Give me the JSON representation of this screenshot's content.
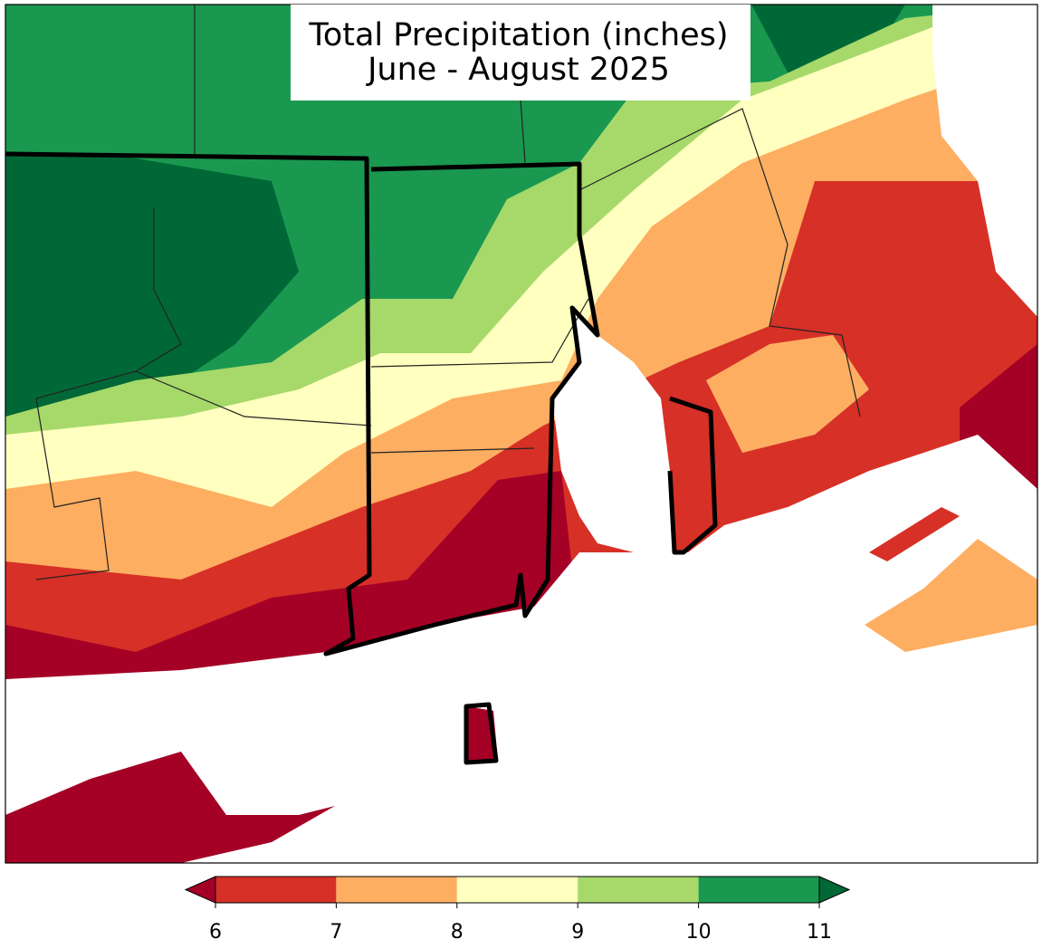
{
  "title": [
    "Total Precipitation (inches)",
    "June - August 2025"
  ],
  "colorbar": {
    "ticks": [
      6,
      7,
      8,
      9,
      10,
      11
    ],
    "colors": [
      "#d73027",
      "#fdae61",
      "#ffffbf",
      "#a6d96a",
      "#1a9850"
    ],
    "under_color": "#a50026",
    "over_color": "#006837"
  }
}
